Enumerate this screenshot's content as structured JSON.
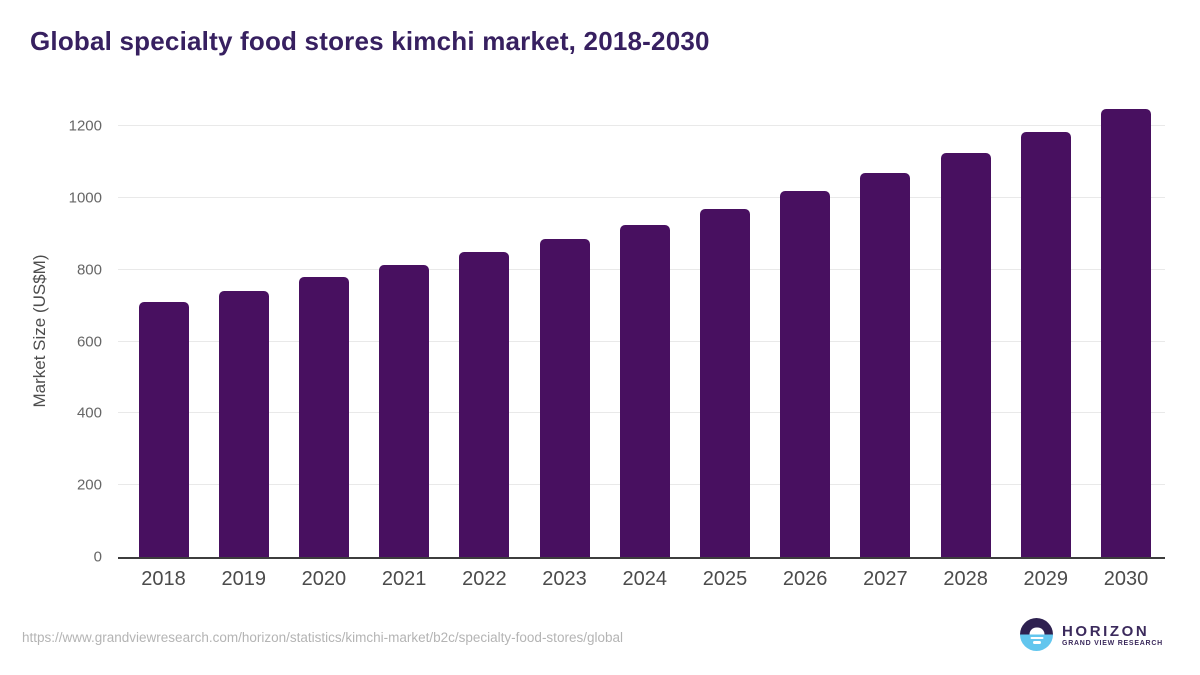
{
  "title": "Global specialty food stores kimchi market, 2018-2030",
  "chart_data": {
    "type": "bar",
    "title": "Global specialty food stores kimchi market, 2018-2030",
    "xlabel": "",
    "ylabel": "Market Size (US$M)",
    "categories": [
      "2018",
      "2019",
      "2020",
      "2021",
      "2022",
      "2023",
      "2024",
      "2025",
      "2026",
      "2027",
      "2028",
      "2029",
      "2030"
    ],
    "values": [
      711,
      741,
      780,
      813,
      850,
      886,
      925,
      970,
      1018,
      1068,
      1124,
      1184,
      1246
    ],
    "y_ticks": [
      0,
      200,
      400,
      600,
      800,
      1000,
      1200
    ],
    "ylim": [
      0,
      1282
    ],
    "grid": "horizontal",
    "legend": "none",
    "bar_color": "#481060"
  },
  "footer": {
    "source_url": "https://www.grandviewresearch.com/horizon/statistics/kimchi-market/b2c/specialty-food-stores/global",
    "logo": {
      "brand": "HORIZON",
      "tagline": "GRAND VIEW RESEARCH"
    }
  },
  "colors": {
    "title": "#372060",
    "bar": "#481060",
    "axis_label": "#4d4d4d",
    "tick_label": "#666666",
    "x_tick_label": "#4b4b4b",
    "gridline": "#e9e9e9",
    "axis_line": "#3d3d3d",
    "url": "#b4b4b4",
    "logo_text": "#3b2a5c",
    "logo_dark": "#2e2150",
    "logo_blue": "#62c6ee"
  }
}
